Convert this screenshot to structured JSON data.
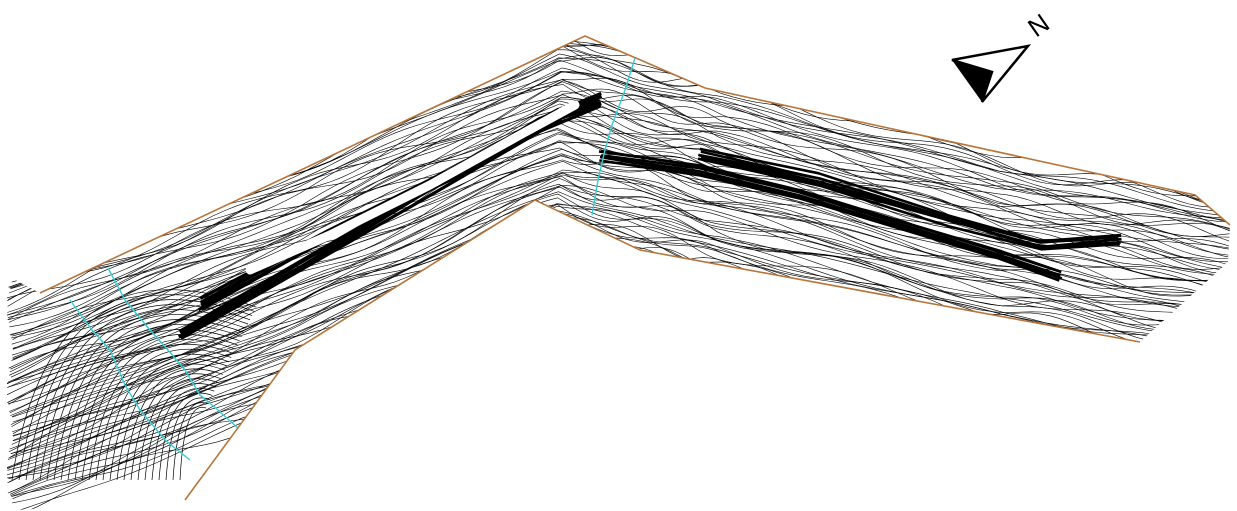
{
  "map": {
    "type": "topographic-contour-map",
    "colors": {
      "background": "#ffffff",
      "contour_lines": "#000000",
      "boundary": "#b8753a",
      "waterway": "#2fd0d8"
    },
    "north_arrow": {
      "icon": "north-arrow-icon",
      "label": "N"
    }
  }
}
